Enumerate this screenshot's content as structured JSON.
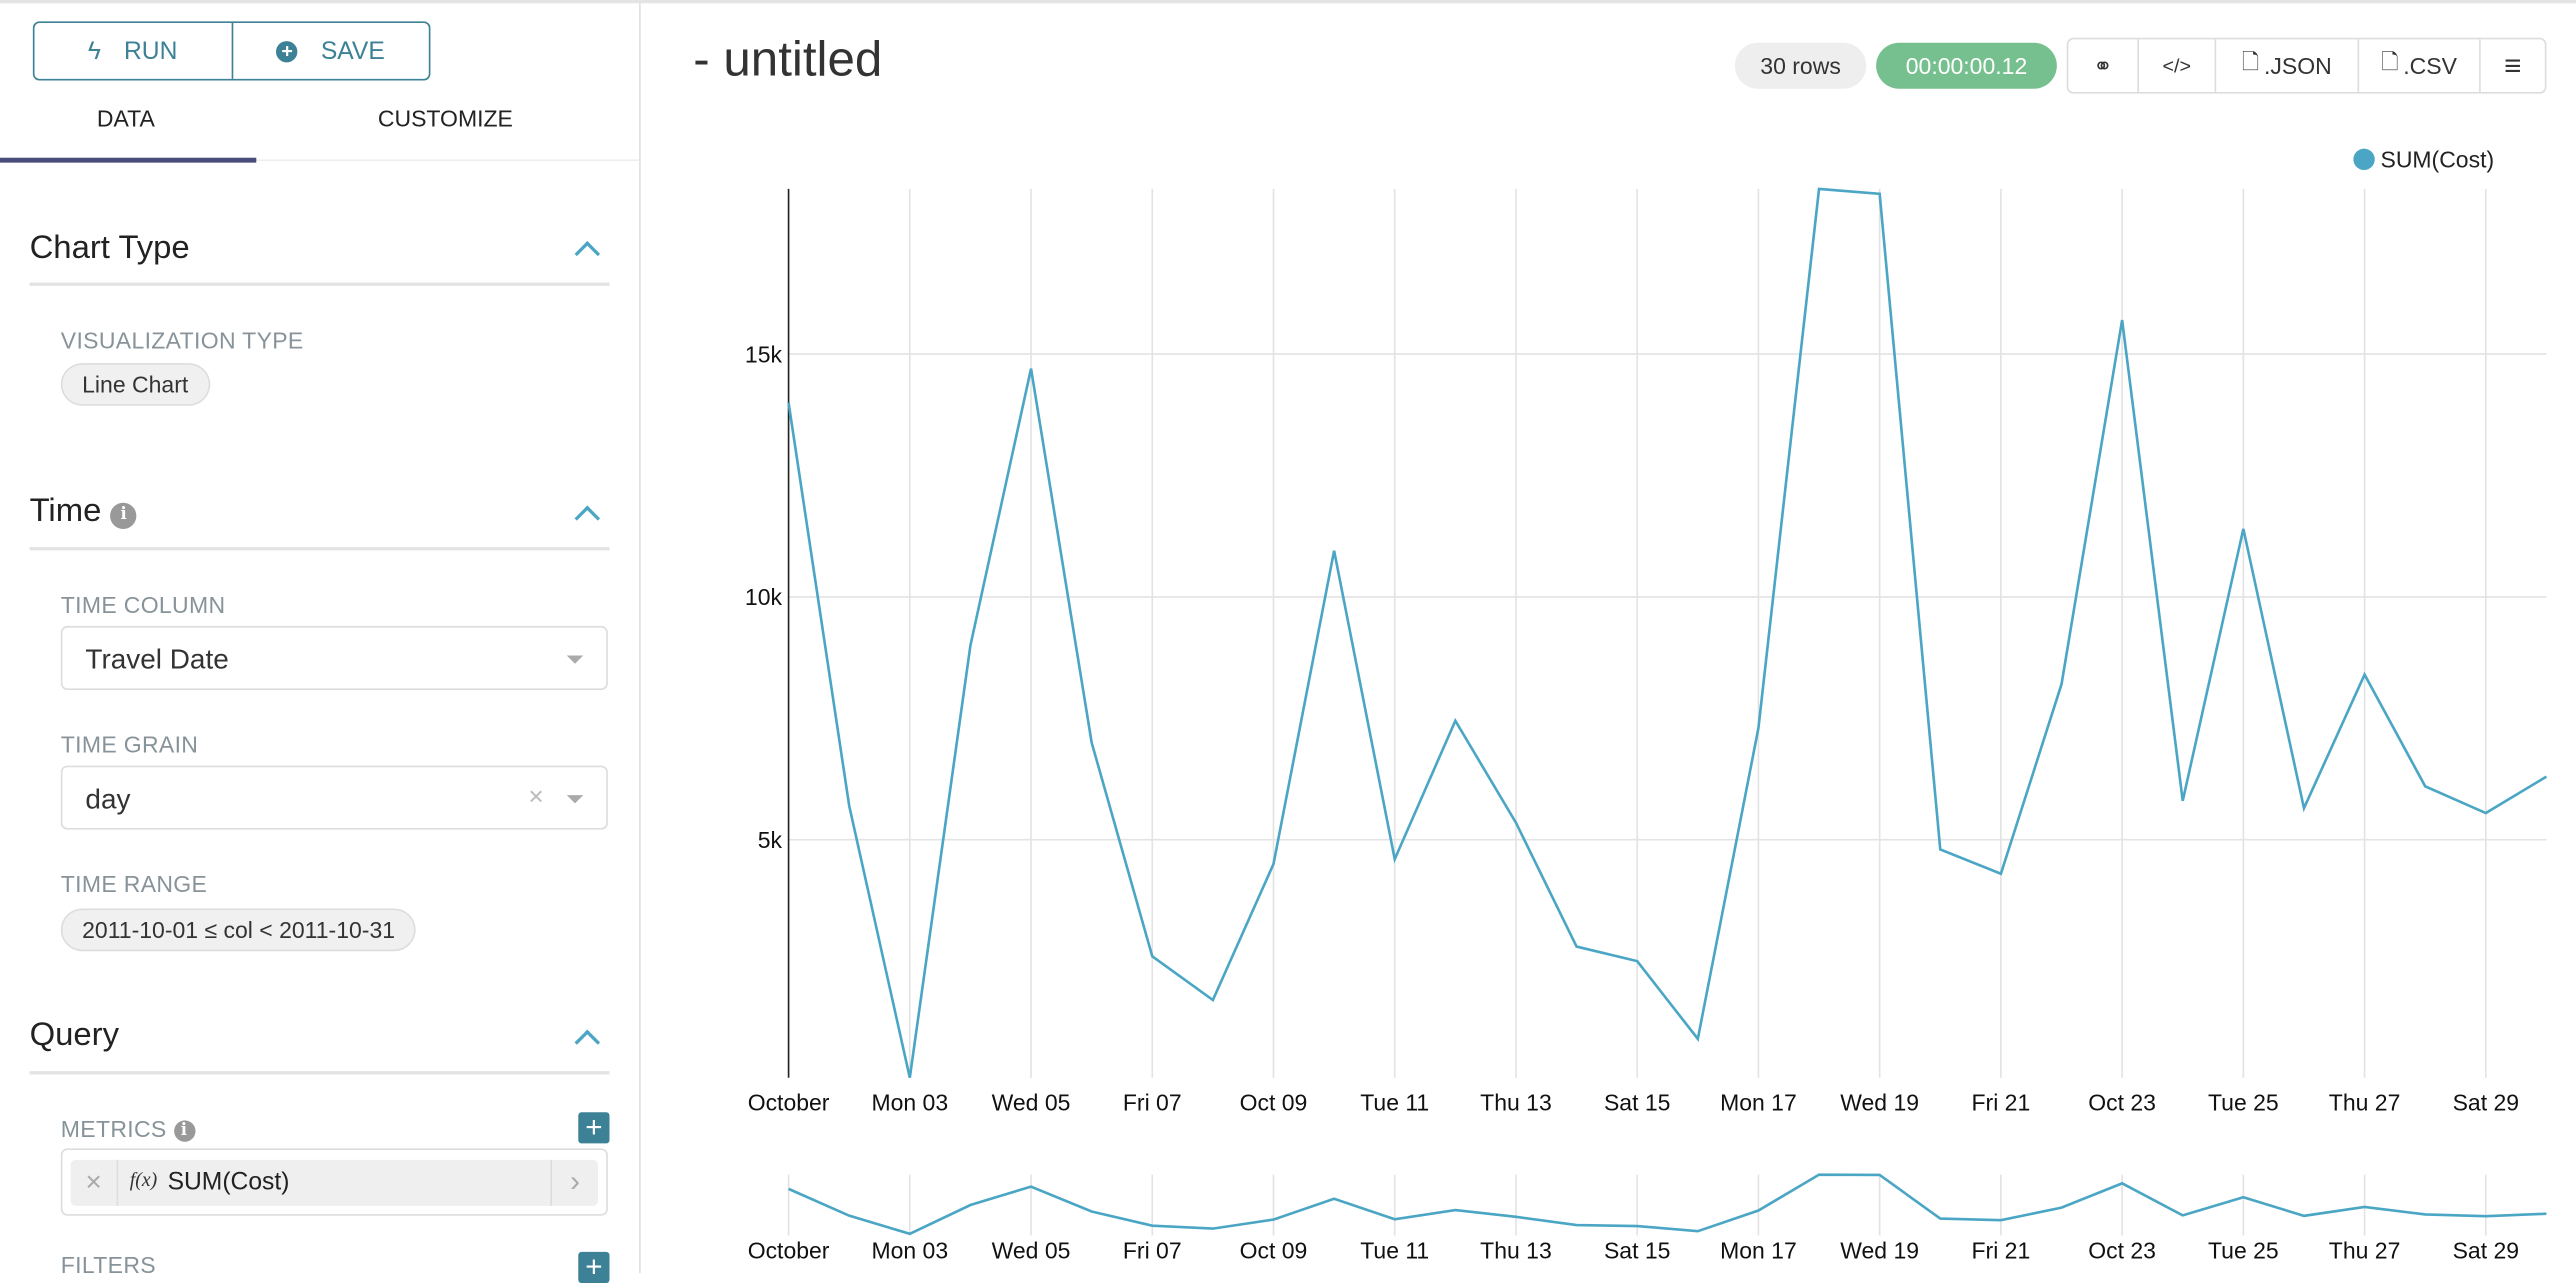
{
  "toolbar": {
    "run_label": "RUN",
    "save_label": "SAVE"
  },
  "tabs": [
    {
      "label": "DATA",
      "active": true
    },
    {
      "label": "CUSTOMIZE",
      "active": false
    }
  ],
  "sections": {
    "chart_type": {
      "title": "Chart Type",
      "viz_label": "VISUALIZATION TYPE",
      "viz_value": "Line Chart"
    },
    "time": {
      "title": "Time",
      "time_column_label": "TIME COLUMN",
      "time_column_value": "Travel Date",
      "time_grain_label": "TIME GRAIN",
      "time_grain_value": "day",
      "time_range_label": "TIME RANGE",
      "time_range_value": "2011-10-01 ≤ col < 2011-10-31"
    },
    "query": {
      "title": "Query",
      "metrics_label": "METRICS",
      "metric_fx": "f(x)",
      "metric_value": "SUM(Cost)",
      "filters_label": "FILTERS"
    }
  },
  "header": {
    "title": "- untitled",
    "rows_badge": "30 rows",
    "timer_badge": "00:00:00.12",
    "json_label": ".JSON",
    "csv_label": ".CSV"
  },
  "colors": {
    "accent": "#3d8197",
    "line": "#4aa6c4",
    "timer": "#75c08e",
    "tab_underline": "#484d7a"
  },
  "chart_data": {
    "type": "line",
    "x": [
      "2011-10-01",
      "2011-10-02",
      "2011-10-03",
      "2011-10-04",
      "2011-10-05",
      "2011-10-06",
      "2011-10-07",
      "2011-10-08",
      "2011-10-09",
      "2011-10-10",
      "2011-10-11",
      "2011-10-12",
      "2011-10-13",
      "2011-10-14",
      "2011-10-15",
      "2011-10-16",
      "2011-10-17",
      "2011-10-18",
      "2011-10-19",
      "2011-10-20",
      "2011-10-21",
      "2011-10-22",
      "2011-10-23",
      "2011-10-24",
      "2011-10-25",
      "2011-10-26",
      "2011-10-27",
      "2011-10-28",
      "2011-10-29",
      "2011-10-30"
    ],
    "series": [
      {
        "name": "SUM(Cost)",
        "values": [
          14000,
          5700,
          100,
          9000,
          14700,
          7000,
          2600,
          1700,
          4500,
          10950,
          4600,
          7450,
          5350,
          2800,
          2500,
          900,
          7300,
          18400,
          18300,
          4800,
          4300,
          8200,
          15700,
          5800,
          11400,
          5650,
          8400,
          6100,
          5550,
          6300
        ]
      }
    ],
    "x_ticks": [
      "October",
      "Mon 03",
      "Wed 05",
      "Fri 07",
      "Oct 09",
      "Tue 11",
      "Thu 13",
      "Sat 15",
      "Mon 17",
      "Wed 19",
      "Fri 21",
      "Oct 23",
      "Tue 25",
      "Thu 27",
      "Sat 29"
    ],
    "y_ticks": [
      {
        "value": 5000,
        "label": "5k"
      },
      {
        "value": 10000,
        "label": "10k"
      },
      {
        "value": 15000,
        "label": "15k"
      }
    ],
    "ylim": [
      100,
      18400
    ],
    "legend": "top-right",
    "grid": true,
    "brush": true
  }
}
